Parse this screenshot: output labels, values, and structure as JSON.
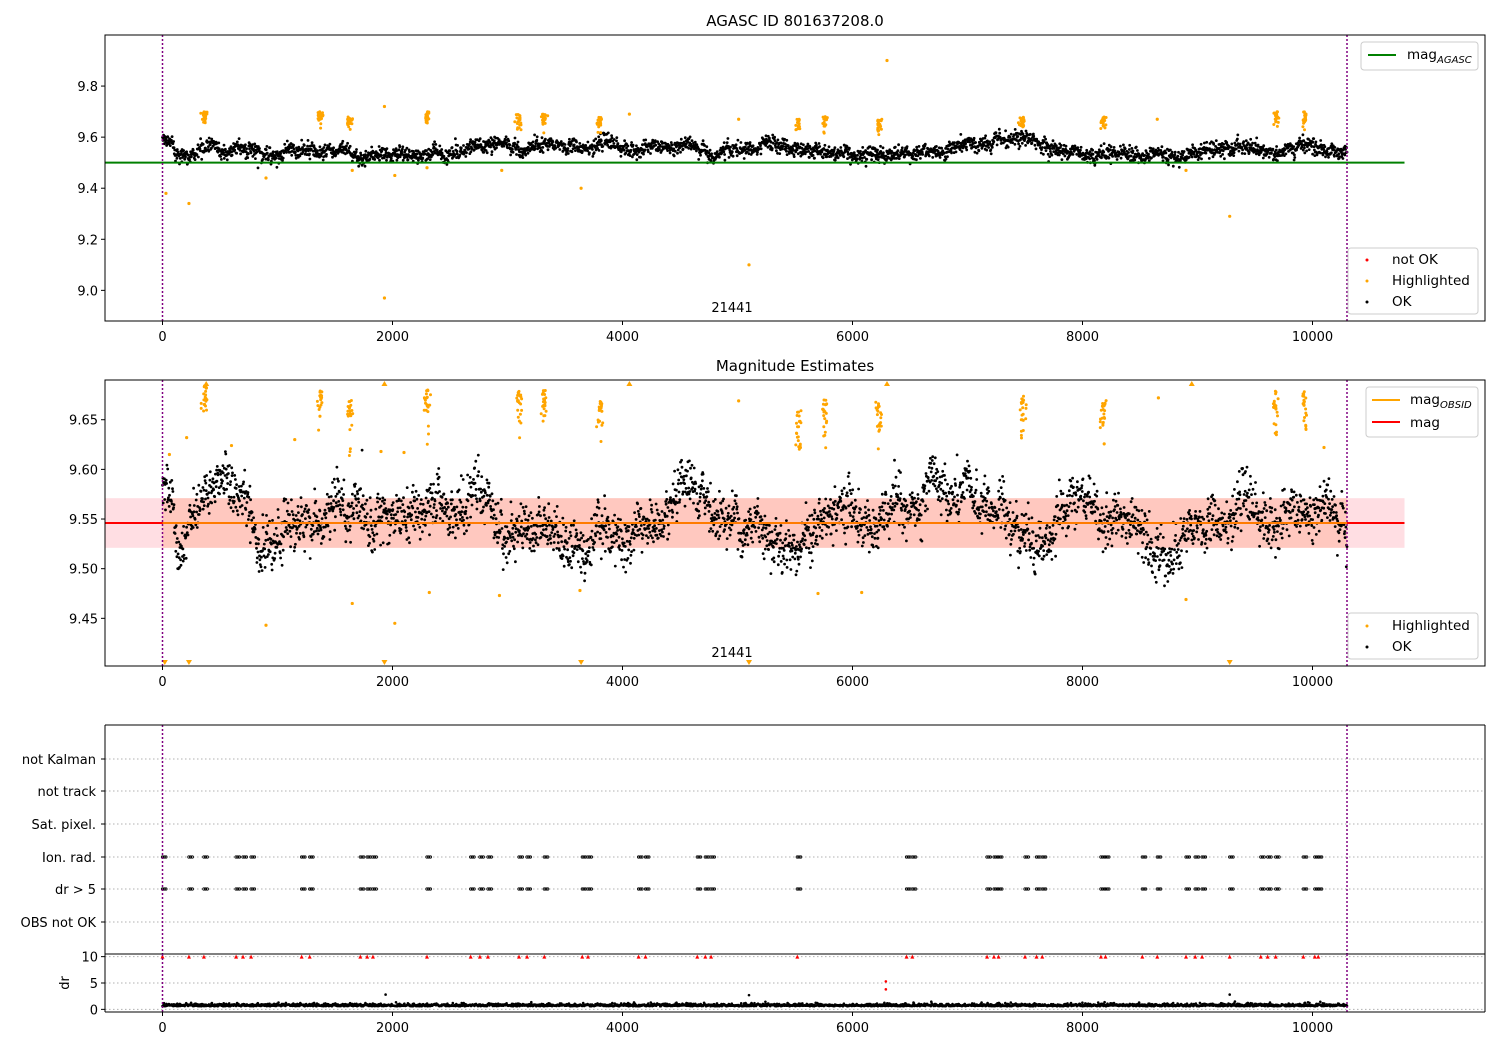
{
  "colors": {
    "ok": "#000000",
    "highlighted": "#ffa500",
    "not_ok": "#ff0000",
    "agasc_line": "#008000",
    "obsid_line": "#ffa500",
    "mag_line": "#ff0000",
    "obs_boundary": "#800080",
    "band_fill": "#ffb6c1"
  },
  "chart_data": [
    {
      "type": "scatter",
      "title": "AGASC ID 801637208.0",
      "xlim": [
        -500,
        11500
      ],
      "ylim": [
        8.88,
        10.0
      ],
      "xticks": [
        "0",
        "2000",
        "4000",
        "6000",
        "8000",
        "10000"
      ],
      "yticks": [
        "9.0",
        "9.2",
        "9.4",
        "9.6",
        "9.8"
      ],
      "annotation": "21441",
      "obs_boundaries": [
        0,
        10300
      ],
      "reference_lines": [
        {
          "name": "mag_AGASC",
          "y": 9.5,
          "x": [
            -500,
            10800
          ],
          "color": "#008000"
        }
      ],
      "legend_lines": [
        {
          "label": "mag",
          "sub": "AGASC",
          "color": "#008000"
        }
      ],
      "legend_points": [
        {
          "label": "not OK",
          "color": "#ff0000"
        },
        {
          "label": "Highlighted",
          "color": "#ffa500"
        },
        {
          "label": "OK",
          "color": "#000000"
        }
      ],
      "series": [
        {
          "name": "OK",
          "x_range": [
            0,
            10300
          ],
          "level": 9.55,
          "sd": 0.025
        },
        {
          "name": "Highlighted",
          "clusters": [
            {
              "x": 370,
              "y": 9.7
            },
            {
              "x": 1370,
              "y": 9.7
            },
            {
              "x": 1630,
              "y": 9.68
            },
            {
              "x": 2300,
              "y": 9.7
            },
            {
              "x": 3100,
              "y": 9.69
            },
            {
              "x": 3320,
              "y": 9.69
            },
            {
              "x": 3800,
              "y": 9.68
            },
            {
              "x": 5530,
              "y": 9.67
            },
            {
              "x": 5760,
              "y": 9.68
            },
            {
              "x": 6230,
              "y": 9.67
            },
            {
              "x": 7480,
              "y": 9.68
            },
            {
              "x": 8180,
              "y": 9.68
            },
            {
              "x": 9680,
              "y": 9.7
            },
            {
              "x": 9930,
              "y": 9.7
            }
          ],
          "outliers": [
            {
              "x": 30,
              "y": 9.38
            },
            {
              "x": 230,
              "y": 9.34
            },
            {
              "x": 900,
              "y": 9.44
            },
            {
              "x": 1930,
              "y": 8.97
            },
            {
              "x": 1930,
              "y": 9.72
            },
            {
              "x": 2020,
              "y": 9.45
            },
            {
              "x": 3640,
              "y": 9.4
            },
            {
              "x": 4060,
              "y": 9.69
            },
            {
              "x": 5010,
              "y": 9.67
            },
            {
              "x": 5100,
              "y": 9.1
            },
            {
              "x": 6300,
              "y": 9.9
            },
            {
              "x": 9280,
              "y": 9.29
            },
            {
              "x": 8900,
              "y": 9.47
            },
            {
              "x": 8650,
              "y": 9.67
            },
            {
              "x": 2950,
              "y": 9.47
            },
            {
              "x": 1650,
              "y": 9.47
            },
            {
              "x": 2300,
              "y": 9.48
            }
          ]
        }
      ]
    },
    {
      "type": "scatter",
      "title": "Magnitude Estimates",
      "xlim": [
        -500,
        11500
      ],
      "ylim": [
        9.402,
        9.69
      ],
      "xticks": [
        "0",
        "2000",
        "4000",
        "6000",
        "8000",
        "10000"
      ],
      "yticks": [
        "9.45",
        "9.50",
        "9.55",
        "9.60",
        "9.65"
      ],
      "annotation": "21441",
      "obs_boundaries": [
        0,
        10300
      ],
      "reference_lines": [
        {
          "name": "mag",
          "y": 9.546,
          "x": [
            -500,
            10800
          ],
          "color": "#ff0000"
        },
        {
          "name": "mag_OBSID",
          "y": 9.546,
          "x": [
            0,
            10300
          ],
          "color": "#ffa500"
        }
      ],
      "bands": [
        {
          "name": "mag_err",
          "y": [
            9.521,
            9.571
          ],
          "x": [
            -500,
            10800
          ],
          "color": "#ffb6c1"
        },
        {
          "name": "obsid_err",
          "y": [
            9.521,
            9.571
          ],
          "x": [
            0,
            10300
          ],
          "color": "#ffa07a"
        }
      ],
      "legend_lines": [
        {
          "label": "mag",
          "sub": "OBSID",
          "color": "#ffa500"
        },
        {
          "label": "mag",
          "sub": "",
          "color": "#ff0000"
        }
      ],
      "legend_points": [
        {
          "label": "Highlighted",
          "color": "#ffa500"
        },
        {
          "label": "OK",
          "color": "#000000"
        }
      ],
      "series": [
        {
          "name": "OK",
          "x_range": [
            0,
            10300
          ],
          "level": 9.546,
          "sd": 0.022
        },
        {
          "name": "Highlighted",
          "clusters": [
            {
              "x": 370,
              "y": 9.685
            },
            {
              "x": 1370,
              "y": 9.68
            },
            {
              "x": 1630,
              "y": 9.67
            },
            {
              "x": 2300,
              "y": 9.68
            },
            {
              "x": 3100,
              "y": 9.68
            },
            {
              "x": 3320,
              "y": 9.68
            },
            {
              "x": 3800,
              "y": 9.67
            },
            {
              "x": 5530,
              "y": 9.66
            },
            {
              "x": 5760,
              "y": 9.67
            },
            {
              "x": 6230,
              "y": 9.67
            },
            {
              "x": 7480,
              "y": 9.675
            },
            {
              "x": 8180,
              "y": 9.67
            },
            {
              "x": 9680,
              "y": 9.68
            },
            {
              "x": 9930,
              "y": 9.68
            }
          ],
          "outliers": [
            {
              "x": 210,
              "y": 9.632
            },
            {
              "x": 600,
              "y": 9.624
            },
            {
              "x": 1150,
              "y": 9.63
            },
            {
              "x": 1650,
              "y": 9.465
            },
            {
              "x": 900,
              "y": 9.443
            },
            {
              "x": 2020,
              "y": 9.445
            },
            {
              "x": 2320,
              "y": 9.476
            },
            {
              "x": 2930,
              "y": 9.473
            },
            {
              "x": 3630,
              "y": 9.478
            },
            {
              "x": 5010,
              "y": 9.669
            },
            {
              "x": 5700,
              "y": 9.475
            },
            {
              "x": 6080,
              "y": 9.476
            },
            {
              "x": 8660,
              "y": 9.672
            },
            {
              "x": 8900,
              "y": 9.469
            },
            {
              "x": 10100,
              "y": 9.622
            },
            {
              "x": 1900,
              "y": 9.618
            },
            {
              "x": 2100,
              "y": 9.617
            },
            {
              "x": 60,
              "y": 9.615
            }
          ],
          "offscale_below": [
            20,
            230,
            1930,
            3640,
            5100,
            9280
          ],
          "offscale_above": [
            380,
            1930,
            4060,
            6300,
            8950
          ]
        }
      ]
    },
    {
      "type": "scatter",
      "title": "",
      "xlim": [
        -500,
        11500
      ],
      "category_labels": [
        "not Kalman",
        "not track",
        "Sat. pixel.",
        "Ion. rad.",
        "dr > 5",
        "OBS not OK"
      ],
      "flag_x": [
        0,
        230,
        360,
        640,
        700,
        770,
        1210,
        1280,
        1720,
        1780,
        1830,
        2300,
        2680,
        2760,
        2830,
        3100,
        3170,
        3320,
        3650,
        3700,
        4140,
        4200,
        4650,
        4720,
        4770,
        5520,
        6470,
        6520,
        7170,
        7230,
        7270,
        7500,
        7600,
        7650,
        8160,
        8200,
        8520,
        8650,
        8900,
        8980,
        9040,
        9280,
        9550,
        9610,
        9680,
        9920,
        10020,
        10050
      ],
      "obs_boundaries": [
        0,
        10300
      ]
    },
    {
      "type": "scatter",
      "title": "",
      "xlim": [
        -500,
        11500
      ],
      "ylim": [
        -0.5,
        10.5
      ],
      "ylabel": "dr",
      "xticks": [
        "0",
        "2000",
        "4000",
        "6000",
        "8000",
        "10000"
      ],
      "yticks": [
        "0",
        "5",
        "10"
      ],
      "series": [
        {
          "name": "OK",
          "x_range": [
            0,
            10300
          ],
          "level": 0.6,
          "sd": 0.25
        },
        {
          "name": "not OK",
          "y": 10,
          "outliers": [
            {
              "x": 6290,
              "y": 5.3
            },
            {
              "x": 6290,
              "y": 3.8
            },
            {
              "x": 1940,
              "y": 2.8
            },
            {
              "x": 5100,
              "y": 2.7
            },
            {
              "x": 9280,
              "y": 2.8
            }
          ]
        }
      ],
      "obs_boundaries": [
        0,
        10300
      ]
    }
  ]
}
